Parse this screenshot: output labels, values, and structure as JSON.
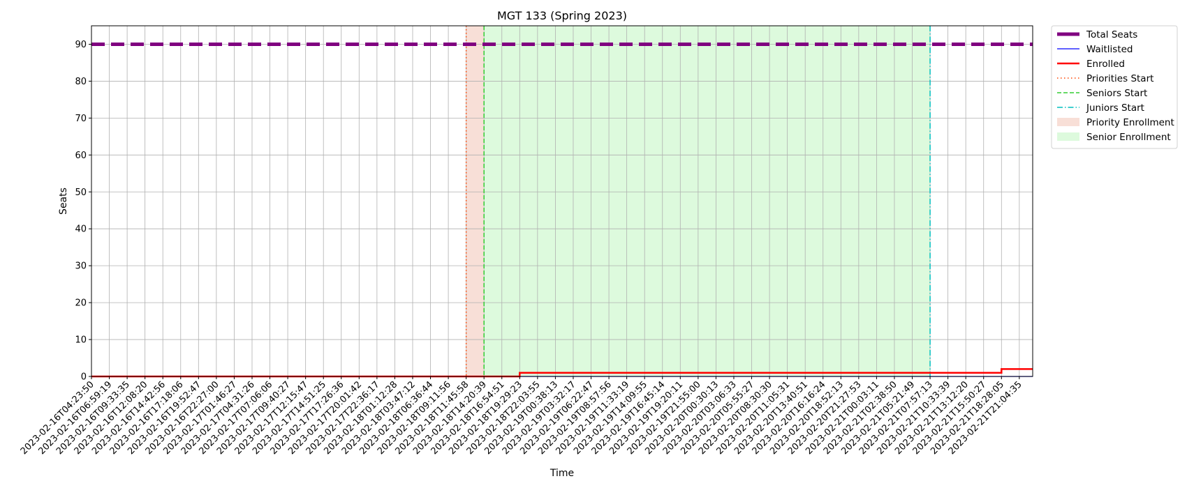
{
  "chart_data": {
    "type": "line",
    "title": "MGT 133 (Spring 2023)",
    "xlabel": "Time",
    "ylabel": "Seats",
    "ylim": [
      0,
      95
    ],
    "yticks": [
      0,
      10,
      20,
      30,
      40,
      50,
      60,
      70,
      80,
      90
    ],
    "grid": true,
    "legend_position": "outside top-right",
    "x_categories": [
      "2023-02-16T04:23:50",
      "2023-02-16T06:59:19",
      "2023-02-16T09:33:35",
      "2023-02-16T12:08:20",
      "2023-02-16T14:42:56",
      "2023-02-16T17:18:06",
      "2023-02-16T19:52:47",
      "2023-02-16T22:27:00",
      "2023-02-17T01:46:27",
      "2023-02-17T04:31:26",
      "2023-02-17T07:06:06",
      "2023-02-17T09:40:27",
      "2023-02-17T12:15:47",
      "2023-02-17T14:51:25",
      "2023-02-17T17:26:36",
      "2023-02-17T20:01:42",
      "2023-02-17T22:36:17",
      "2023-02-18T01:12:28",
      "2023-02-18T03:47:12",
      "2023-02-18T06:36:44",
      "2023-02-18T09:11:56",
      "2023-02-18T11:45:58",
      "2023-02-18T14:20:39",
      "2023-02-18T16:54:51",
      "2023-02-18T19:29:23",
      "2023-02-18T22:03:55",
      "2023-02-19T00:38:13",
      "2023-02-19T03:32:17",
      "2023-02-19T06:22:47",
      "2023-02-19T08:57:56",
      "2023-02-19T11:33:19",
      "2023-02-19T14:09:55",
      "2023-02-19T16:45:14",
      "2023-02-19T19:20:11",
      "2023-02-19T21:55:00",
      "2023-02-20T00:30:13",
      "2023-02-20T03:06:33",
      "2023-02-20T05:55:27",
      "2023-02-20T08:30:30",
      "2023-02-20T11:05:31",
      "2023-02-20T13:40:51",
      "2023-02-20T16:16:24",
      "2023-02-20T18:52:13",
      "2023-02-20T21:27:53",
      "2023-02-21T00:03:11",
      "2023-02-21T02:38:50",
      "2023-02-21T05:21:49",
      "2023-02-21T07:57:13",
      "2023-02-21T10:33:39",
      "2023-02-21T13:12:20",
      "2023-02-21T15:50:27",
      "2023-02-21T18:28:05",
      "2023-02-21T21:04:35"
    ],
    "series": [
      {
        "name": "Total Seats",
        "color": "#800080",
        "style": "dashed-thick",
        "steps": [
          {
            "x": "2023-02-16T04:23:50",
            "y": 90
          }
        ]
      },
      {
        "name": "Waitlisted",
        "color": "#0000ff",
        "style": "solid-thin",
        "steps": [
          {
            "x": "2023-02-16T04:23:50",
            "y": 0
          }
        ]
      },
      {
        "name": "Enrolled",
        "color": "#ff0000",
        "style": "solid-thick",
        "steps": [
          {
            "x": "2023-02-16T04:23:50",
            "y": 0
          },
          {
            "x": "2023-02-18T19:29:23",
            "y": 1
          },
          {
            "x": "2023-02-21T18:28:05",
            "y": 2
          }
        ]
      }
    ],
    "vertical_lines": [
      {
        "name": "Priorities Start",
        "x": "2023-02-18T11:45:58",
        "color": "#ff4500",
        "style": "dotted"
      },
      {
        "name": "Seniors Start",
        "x": "2023-02-18T14:20:39",
        "color": "#32cd32",
        "style": "dashed"
      },
      {
        "name": "Juniors Start",
        "x": "2023-02-21T07:57:13",
        "color": "#00bfbf",
        "style": "dashdot"
      }
    ],
    "shaded_regions": [
      {
        "name": "Priority Enrollment",
        "start": "2023-02-18T11:45:58",
        "end": "2023-02-18T14:20:39",
        "color": "#e9967a"
      },
      {
        "name": "Senior Enrollment",
        "start": "2023-02-18T14:20:39",
        "end": "2023-02-21T07:57:13",
        "color": "#90ee90"
      }
    ],
    "legend": [
      "Total Seats",
      "Waitlisted",
      "Enrolled",
      "Priorities Start",
      "Seniors Start",
      "Juniors Start",
      "Priority Enrollment",
      "Senior Enrollment"
    ]
  }
}
